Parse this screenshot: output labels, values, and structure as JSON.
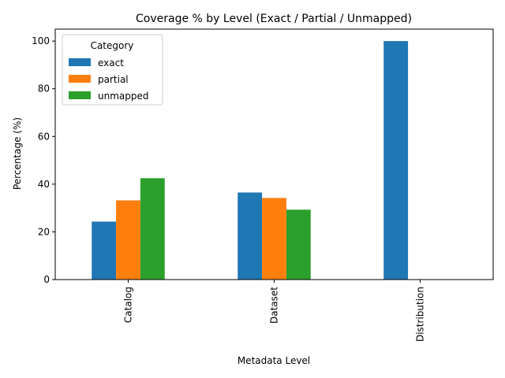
{
  "chart_data": {
    "type": "bar",
    "title": "Coverage % by Level (Exact / Partial / Unmapped)",
    "xlabel": "Metadata Level",
    "ylabel": "Percentage (%)",
    "categories": [
      "Catalog",
      "Dataset",
      "Distribution"
    ],
    "series": [
      {
        "name": "exact",
        "color": "#1f77b4",
        "values": [
          24.3,
          36.5,
          100.0
        ]
      },
      {
        "name": "partial",
        "color": "#ff7f0e",
        "values": [
          33.2,
          34.2,
          0.0
        ]
      },
      {
        "name": "unmapped",
        "color": "#2ca02c",
        "values": [
          42.5,
          29.3,
          0.0
        ]
      }
    ],
    "ylim": [
      0,
      105
    ],
    "yticks": [
      0,
      20,
      40,
      60,
      80,
      100
    ],
    "grid": false,
    "legend": {
      "title": "Category",
      "position": "upper-left"
    }
  }
}
